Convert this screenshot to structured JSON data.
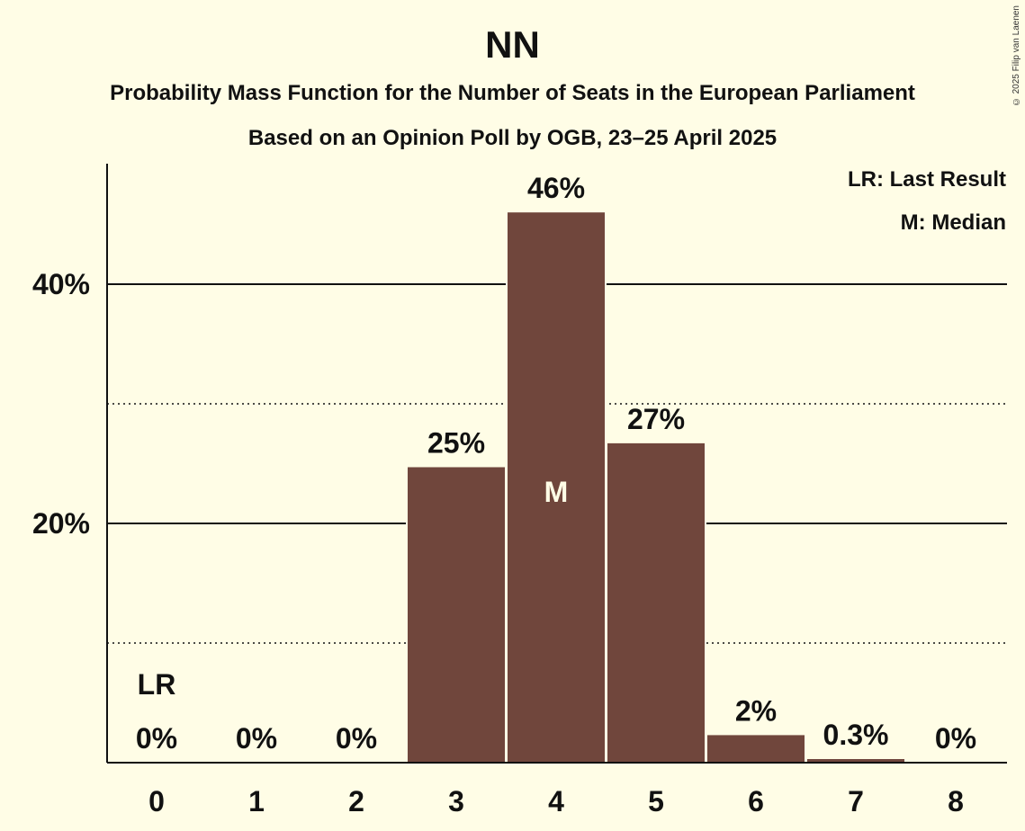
{
  "chart_data": {
    "type": "bar",
    "title": "NN",
    "subtitle": "Probability Mass Function for the Number of Seats in the European Parliament",
    "subtitle2": "Based on an Opinion Poll by OGB, 23–25 April 2025",
    "copyright": "© 2025 Filip van Laenen",
    "legend": [
      "LR: Last Result",
      "M: Median"
    ],
    "legend_position": "top-right",
    "categories": [
      "0",
      "1",
      "2",
      "3",
      "4",
      "5",
      "6",
      "7",
      "8"
    ],
    "values": [
      0,
      0,
      0,
      24.7,
      46.0,
      26.7,
      2.3,
      0.3,
      0
    ],
    "value_labels": [
      "0%",
      "0%",
      "0%",
      "25%",
      "46%",
      "27%",
      "2%",
      "0.3%",
      "0%"
    ],
    "last_result_index": 0,
    "last_result_label": "LR",
    "median_index": 4,
    "median_label": "M",
    "ylim": [
      0,
      50
    ],
    "yticks": [
      20,
      40
    ],
    "ytick_labels": [
      "20%",
      "40%"
    ],
    "minor_gridlines": [
      10,
      30
    ],
    "xlabel": "",
    "ylabel": "",
    "bar_color": "#70463c",
    "background_color": "#fffde6"
  }
}
